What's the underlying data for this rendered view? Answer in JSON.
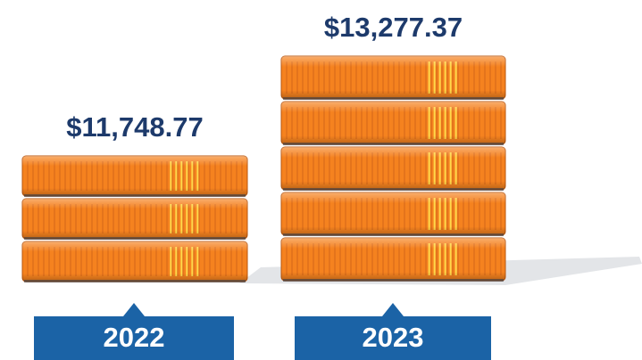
{
  "chart_data": {
    "type": "stack",
    "categories": [
      "2022",
      "2023"
    ],
    "values": [
      11748.77,
      13277.37
    ],
    "value_labels": [
      "$11,748.77",
      "$13,277.37"
    ],
    "color": "#f5821f"
  }
}
